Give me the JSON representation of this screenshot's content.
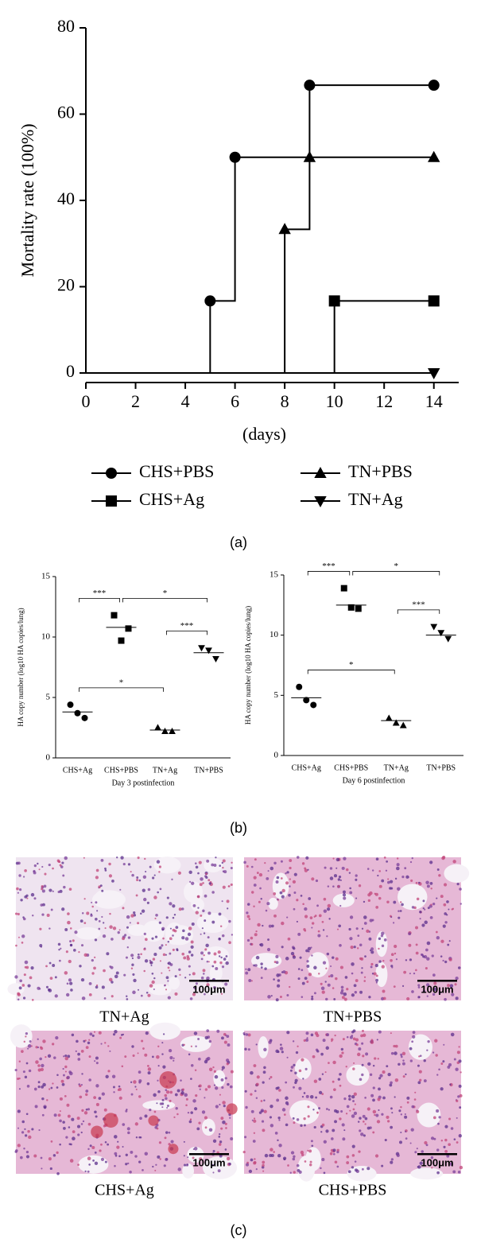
{
  "chart_data": [
    {
      "type": "line",
      "step": true,
      "x_label": "(days)",
      "y_label": "Mortality rate (100%)",
      "xlim": [
        0,
        15
      ],
      "xticks": [
        0,
        2,
        4,
        6,
        8,
        10,
        12,
        14
      ],
      "ylim": [
        0,
        80
      ],
      "yticks": [
        0,
        20,
        40,
        60,
        80
      ],
      "series": [
        {
          "name": "CHS+PBS",
          "marker": "circle",
          "color": "#000000",
          "x": [
            5,
            6,
            9,
            14
          ],
          "values": [
            16.7,
            50,
            66.7,
            66.7
          ]
        },
        {
          "name": "CHS+Ag",
          "marker": "square",
          "color": "#000000",
          "x": [
            10,
            14
          ],
          "values": [
            16.7,
            16.7
          ]
        },
        {
          "name": "TN+PBS",
          "marker": "triangle",
          "color": "#000000",
          "x": [
            8,
            9,
            14
          ],
          "values": [
            33.3,
            50,
            50
          ]
        },
        {
          "name": "TN+Ag",
          "marker": "triangle-down",
          "color": "#000000",
          "x": [
            14
          ],
          "values": [
            0
          ]
        }
      ]
    },
    {
      "type": "dotplot",
      "x_label": "Day 3 postinfection",
      "y_label": "HA copy number (log10 HA copies/lung)",
      "categories": [
        "CHS+Ag",
        "CHS+PBS",
        "TN+Ag",
        "TN+PBS"
      ],
      "markers": [
        "circle",
        "square",
        "triangle",
        "triangle-down"
      ],
      "values": [
        [
          4.4,
          3.3,
          3.7
        ],
        [
          11.8,
          10.7,
          9.7
        ],
        [
          2.5,
          2.2,
          2.2
        ],
        [
          9.1,
          8.2,
          8.9
        ]
      ],
      "means": [
        3.8,
        10.8,
        2.3,
        8.7
      ],
      "ylim": [
        0,
        15
      ],
      "yticks": [
        0,
        5,
        10,
        15
      ],
      "comparisons": [
        {
          "between": [
            0,
            1
          ],
          "label": "***"
        },
        {
          "between": [
            1,
            3
          ],
          "label": "*"
        },
        {
          "between": [
            2,
            3
          ],
          "label": "***"
        },
        {
          "between": [
            0,
            2
          ],
          "label": "*"
        }
      ]
    },
    {
      "type": "dotplot",
      "x_label": "Day 6 postinfection",
      "y_label": "HA copy number (log10 HA copies/lung)",
      "categories": [
        "CHS+Ag",
        "CHS+PBS",
        "TN+Ag",
        "TN+PBS"
      ],
      "markers": [
        "circle",
        "square",
        "triangle",
        "triangle-down"
      ],
      "values": [
        [
          5.7,
          4.2,
          4.6
        ],
        [
          13.9,
          12.2,
          12.3
        ],
        [
          3.1,
          2.5,
          2.7
        ],
        [
          10.7,
          9.7,
          10.2
        ]
      ],
      "means": [
        4.8,
        12.5,
        2.9,
        10.0
      ],
      "ylim": [
        0,
        15
      ],
      "yticks": [
        0,
        5,
        10,
        15
      ],
      "comparisons": [
        {
          "between": [
            0,
            1
          ],
          "label": "***"
        },
        {
          "between": [
            1,
            3
          ],
          "label": "*"
        },
        {
          "between": [
            2,
            3
          ],
          "label": "***"
        },
        {
          "between": [
            0,
            2
          ],
          "label": "*"
        }
      ]
    }
  ],
  "figure": {
    "panel_labels": [
      "(a)",
      "(b)",
      "(c)"
    ],
    "images": [
      {
        "caption": "TN+Ag",
        "scale_bar": "100μm"
      },
      {
        "caption": "TN+PBS",
        "scale_bar": "100μm"
      },
      {
        "caption": "CHS+Ag",
        "scale_bar": "100μm"
      },
      {
        "caption": "CHS+PBS",
        "scale_bar": "100μm"
      }
    ]
  }
}
